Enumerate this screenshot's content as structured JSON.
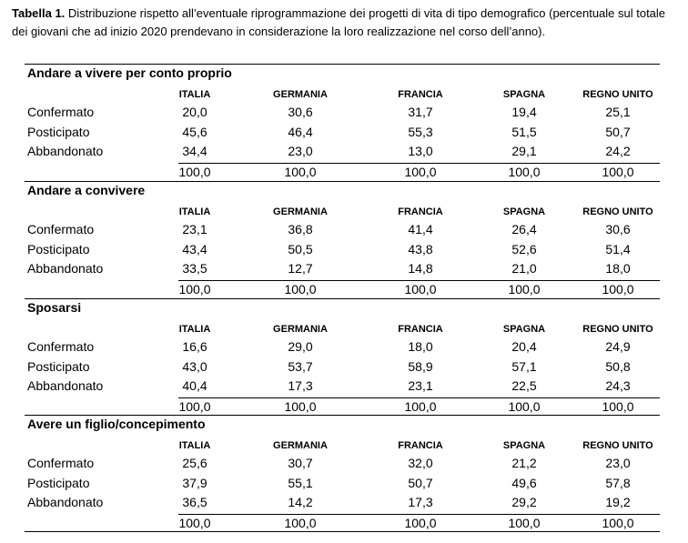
{
  "caption": {
    "label": "Tabella 1.",
    "text": " Distribuzione rispetto all’eventuale riprogrammazione dei progetti di vita di tipo demografico (percentuale sul totale dei giovani che ad inizio 2020 prendevano in considerazione la loro realizzazione nel corso dell’anno)."
  },
  "columns": [
    "ITALIA",
    "GERMANIA",
    "FRANCIA",
    "SPAGNA",
    "REGNO UNITO"
  ],
  "sections": [
    {
      "title": "Andare a vivere per conto proprio",
      "rows": [
        {
          "label": "Confermato",
          "values": [
            "20,0",
            "30,6",
            "31,7",
            "19,4",
            "25,1"
          ]
        },
        {
          "label": "Posticipato",
          "values": [
            "45,6",
            "46,4",
            "55,3",
            "51,5",
            "50,7"
          ]
        },
        {
          "label": "Abbandonato",
          "values": [
            "34,4",
            "23,0",
            "13,0",
            "29,1",
            "24,2"
          ]
        }
      ],
      "totals": [
        "100,0",
        "100,0",
        "100,0",
        "100,0",
        "100,0"
      ]
    },
    {
      "title": "Andare a convivere",
      "rows": [
        {
          "label": "Confermato",
          "values": [
            "23,1",
            "36,8",
            "41,4",
            "26,4",
            "30,6"
          ]
        },
        {
          "label": "Posticipato",
          "values": [
            "43,4",
            "50,5",
            "43,8",
            "52,6",
            "51,4"
          ]
        },
        {
          "label": "Abbandonato",
          "values": [
            "33,5",
            "12,7",
            "14,8",
            "21,0",
            "18,0"
          ]
        }
      ],
      "totals": [
        "100,0",
        "100,0",
        "100,0",
        "100,0",
        "100,0"
      ]
    },
    {
      "title": "Sposarsi",
      "rows": [
        {
          "label": "Confermato",
          "values": [
            "16,6",
            "29,0",
            "18,0",
            "20,4",
            "24,9"
          ]
        },
        {
          "label": "Posticipato",
          "values": [
            "43,0",
            "53,7",
            "58,9",
            "57,1",
            "50,8"
          ]
        },
        {
          "label": "Abbandonato",
          "values": [
            "40,4",
            "17,3",
            "23,1",
            "22,5",
            "24,3"
          ]
        }
      ],
      "totals": [
        "100,0",
        "100,0",
        "100,0",
        "100,0",
        "100,0"
      ]
    },
    {
      "title": "Avere un figlio/concepimento",
      "rows": [
        {
          "label": "Confermato",
          "values": [
            "25,6",
            "30,7",
            "32,0",
            "21,2",
            "23,0"
          ]
        },
        {
          "label": "Posticipato",
          "values": [
            "37,9",
            "55,1",
            "50,7",
            "49,6",
            "57,8"
          ]
        },
        {
          "label": "Abbandonato",
          "values": [
            "36,5",
            "14,2",
            "17,3",
            "29,2",
            "19,2"
          ]
        }
      ],
      "totals": [
        "100,0",
        "100,0",
        "100,0",
        "100,0",
        "100,0"
      ]
    }
  ]
}
